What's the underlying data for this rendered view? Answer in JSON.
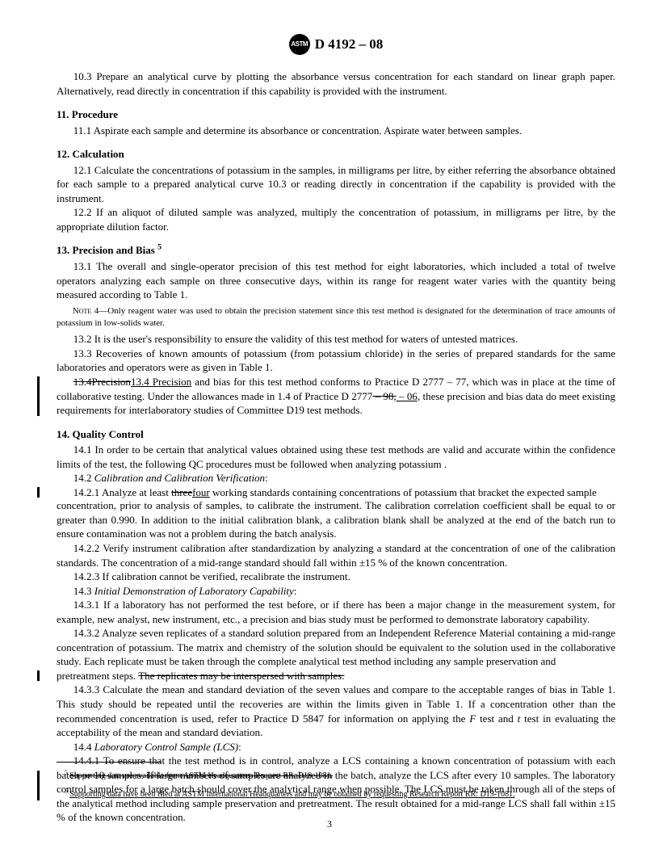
{
  "header": {
    "designation": "D 4192 – 08"
  },
  "p10_3": "10.3 Prepare an analytical curve by plotting the absorbance versus concentration for each standard on linear graph paper. Alternatively, read directly in concentration if this capability is provided with the instrument.",
  "s11": {
    "title": "11.  Procedure",
    "p11_1": "11.1 Aspirate each sample and determine its absorbance or concentration. Aspirate water between samples."
  },
  "s12": {
    "title": "12.  Calculation",
    "p12_1": "12.1 Calculate the concentrations of potassium in the samples, in milligrams per litre, by either referring the absorbance obtained for each sample to a prepared analytical curve 10.3 or reading directly in concentration if the capability is provided with the instrument.",
    "p12_2": "12.2 If an aliquot of diluted sample was analyzed, multiply the concentration of potassium, in milligrams per litre, by the appropriate dilution factor."
  },
  "s13": {
    "title": "13.  Precision and Bias ",
    "p13_1": "13.1 The overall and single-operator precision of this test method for eight laboratories, which included a total of twelve operators analyzing each sample on three consecutive days, within its range for reagent water varies with the quantity being measured according to Table 1.",
    "note4": "Only reagent water was used to obtain the precision statement since this test method is designated for the determination of trace amounts of potassium in low-solids water.",
    "note4_label": "Note 4—",
    "p13_2": "13.2 It is the user's responsibility to ensure the validity of this test method for waters of untested matrices.",
    "p13_3": "13.3 Recoveries of known amounts of potassium (from potassium chloride) in the series of prepared standards for the same laboratories and operators were as given in Table 1.",
    "p13_4_strike1": "13.4Precision",
    "p13_4_new": "13.4  Precision",
    "p13_4_body1": " and bias for this test method conforms to Practice D 2777 – 77, which was in place at the time of collaborative testing. Under the allowances made in 1.4 of Practice D 2777",
    "p13_4_strike2": " – 98,",
    "p13_4_ins": " – 06,",
    "p13_4_body2": " these precision and bias data do meet existing requirements for interlaboratory studies of Committee D19 test methods."
  },
  "s14": {
    "title": "14.  Quality Control",
    "p14_1": "14.1 In order to be certain that analytical values obtained using these test methods are valid and accurate within the confidence limits of the test, the following QC procedures must be followed when analyzing potassium .",
    "p14_2": "14.2 ",
    "p14_2_i": "Calibration and Calibration Verification",
    "p14_2_1a": "14.2.1 Analyze at least ",
    "p14_2_1_strike": "three",
    "p14_2_1_ins": "four",
    "p14_2_1b": " working standards containing concentrations of potassium that bracket the expected sample concentration, prior to analysis of samples, to calibrate the instrument. The calibration correlation coefficient shall be equal to or greater than 0.990. In addition to the initial calibration blank, a calibration blank shall be analyzed at the end of the batch run to ensure contamination was not a problem during the batch analysis.",
    "p14_2_2": "14.2.2 Verify instrument calibration after standardization by analyzing a standard at the concentration of one of the calibration standards. The concentration of a mid-range standard should fall within ±15 % of the known concentration.",
    "p14_2_3": "14.2.3 If calibration cannot be verified, recalibrate the instrument.",
    "p14_3": "14.3 ",
    "p14_3_i": "Initial Demonstration of Laboratory Capability",
    "p14_3_1": "14.3.1 If a laboratory has not performed the test before, or if there has been a major change in the measurement system, for example, new analyst, new instrument, etc., a precision and bias study must be performed to demonstrate laboratory capability.",
    "p14_3_2a": "14.3.2 Analyze seven replicates of a standard solution prepared from an Independent Reference Material containing a mid-range concentration of potassium. The matrix and chemistry of the solution should be equivalent to the solution used in the collaborative study. Each replicate must be taken through the complete analytical test method including any sample preservation and pretreatment steps. ",
    "p14_3_2_strike": "The replicates may be interspersed with samples.",
    "p14_3_3a": "14.3.3 Calculate the mean and standard deviation of the seven values and compare to the acceptable ranges of bias in Table 1. This study should be repeated until the recoveries are within the limits given in Table 1. If a concentration other than the recommended concentration is used, refer to Practice D 5847 for information on applying the ",
    "p14_3_3_F": "F",
    "p14_3_3_mid": " test and ",
    "p14_3_3_t": "t",
    "p14_3_3b": " test in evaluating the acceptability of the mean and standard deviation.",
    "p14_4": "14.4 ",
    "p14_4_i": "Laboratory Control Sample (LCS)",
    "p14_4_1": "14.4.1 To ensure that the test method is in control, analyze a LCS containing a known concentration of potassium with each batch or 10 samples. If large numbers of samples are analyzed in the batch, analyze the LCS after every 10 samples. The laboratory control samples for a large batch should cover the analytical range when possible. The LCS must be taken through all of the steps of the analytical method including sample preservation and pretreatment. The result obtained for a mid-range LCS shall fall within ±15 % of the known concentration."
  },
  "footnotes": {
    "fn5_strike": "Supporting data are available from ASTM Headquarters. Request RR: D19-1081.",
    "fn5_new": "Supporting data have been filed at ASTM International Headquarters and may be obtained by requesting Research Report RR: D19-1081."
  },
  "pagenum": "3"
}
